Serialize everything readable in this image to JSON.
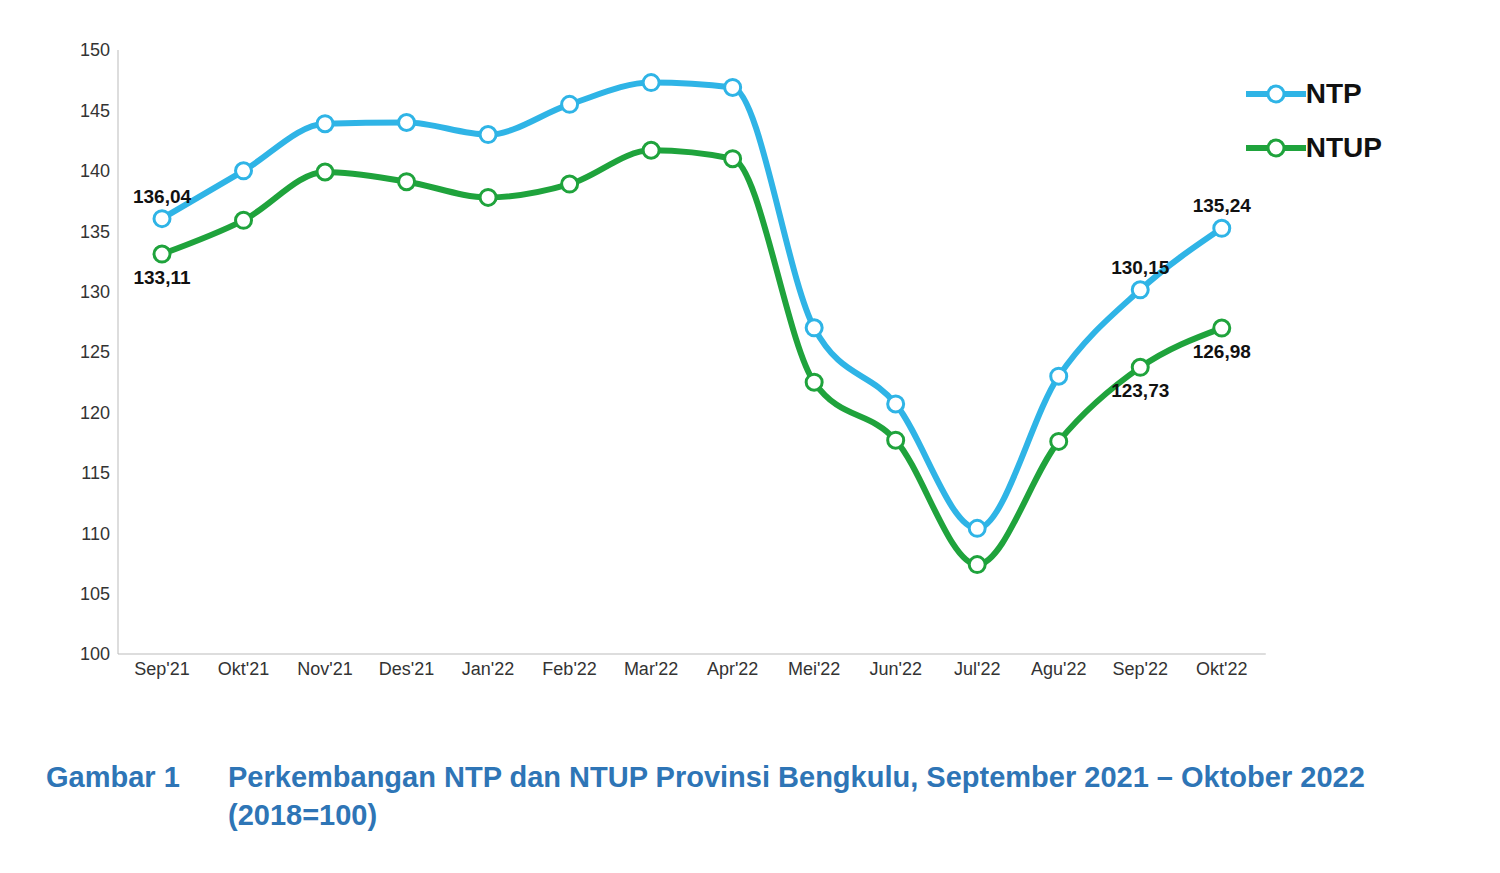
{
  "chart_data": {
    "type": "line",
    "figure_number": "Gambar 1",
    "title": "Perkembangan NTP dan NTUP Provinsi Bengkulu, September 2021 – Oktober 2022 (2018=100)",
    "categories": [
      "Sep'21",
      "Okt'21",
      "Nov'21",
      "Des'21",
      "Jan'22",
      "Feb'22",
      "Mar'22",
      "Apr'22",
      "Mei'22",
      "Jun'22",
      "Jul'22",
      "Agu'22",
      "Sep'22",
      "Okt'22"
    ],
    "series": [
      {
        "name": "NTP",
        "color": "#2fb4e6",
        "marker": "circle",
        "line_style": "solid",
        "values": [
          136.04,
          140.0,
          143.9,
          144.0,
          143.0,
          145.5,
          147.3,
          146.9,
          127.0,
          120.7,
          110.4,
          123.0,
          130.15,
          135.24
        ],
        "value_labels": [
          "136,04",
          null,
          null,
          null,
          null,
          null,
          null,
          null,
          null,
          null,
          null,
          null,
          "130,15",
          "135,24"
        ]
      },
      {
        "name": "NTUP",
        "color": "#1fa33c",
        "marker": "circle",
        "line_style": "solid",
        "values": [
          133.11,
          135.9,
          139.9,
          139.1,
          137.8,
          138.9,
          141.7,
          141.0,
          122.5,
          117.7,
          107.4,
          117.6,
          123.73,
          126.98
        ],
        "value_labels": [
          "133,11",
          null,
          null,
          null,
          null,
          null,
          null,
          null,
          null,
          null,
          null,
          null,
          "123,73",
          "126,98"
        ]
      }
    ],
    "ylim": [
      100,
      150
    ],
    "yticks": [
      100,
      105,
      110,
      115,
      120,
      125,
      130,
      135,
      140,
      145,
      150
    ],
    "grid": false,
    "legend": "top-right",
    "data_labels": true
  }
}
